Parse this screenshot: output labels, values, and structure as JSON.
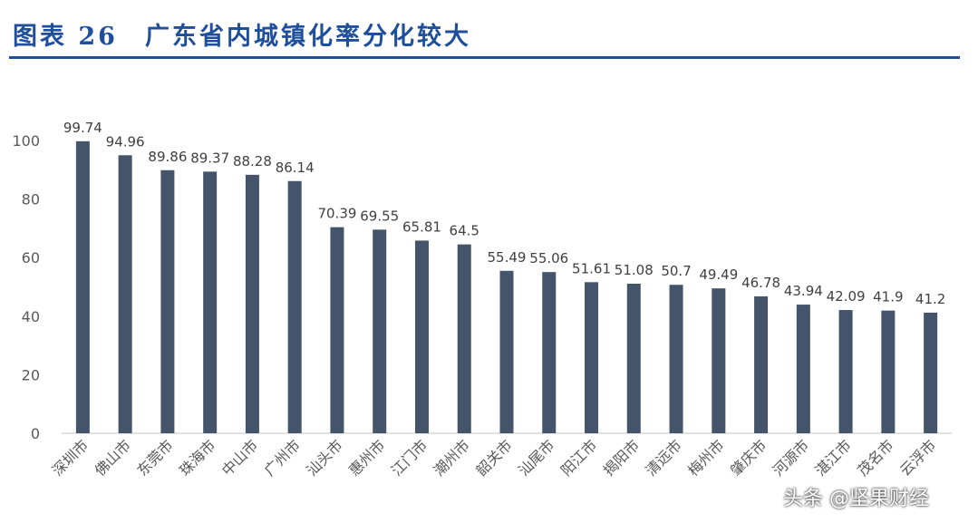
{
  "header": {
    "title": "图表 26　广东省内城镇化率分化较大"
  },
  "watermark": "头条 @坚果财经",
  "colors": {
    "bar": "#44546a",
    "title": "#1f4e9a",
    "axis": "#d9d9d9",
    "text": "#595959"
  },
  "chart_data": {
    "type": "bar",
    "title": "",
    "xlabel": "",
    "ylabel": "",
    "ylim": [
      0,
      100
    ],
    "yticks": [
      0,
      20,
      40,
      60,
      80,
      100
    ],
    "grid": false,
    "legend": "none",
    "categories": [
      "深圳市",
      "佛山市",
      "东莞市",
      "珠海市",
      "中山市",
      "广州市",
      "汕头市",
      "惠州市",
      "江门市",
      "潮州市",
      "韶关市",
      "汕尾市",
      "阳江市",
      "揭阳市",
      "清远市",
      "梅州市",
      "肇庆市",
      "河源市",
      "湛江市",
      "茂名市",
      "云浮市"
    ],
    "values": [
      99.74,
      94.96,
      89.86,
      89.37,
      88.28,
      86.14,
      70.39,
      69.55,
      65.81,
      64.5,
      55.49,
      55.06,
      51.61,
      51.08,
      50.7,
      49.49,
      46.78,
      43.94,
      42.09,
      41.9,
      41.2
    ],
    "value_labels": [
      "99.74",
      "94.96",
      "89.86",
      "89.37",
      "88.28",
      "86.14",
      "70.39",
      "69.55",
      "65.81",
      "64.5",
      "55.49",
      "55.06",
      "51.61",
      "51.08",
      "50.7",
      "49.49",
      "46.78",
      "43.94",
      "42.09",
      "41.9",
      "41.2"
    ]
  }
}
